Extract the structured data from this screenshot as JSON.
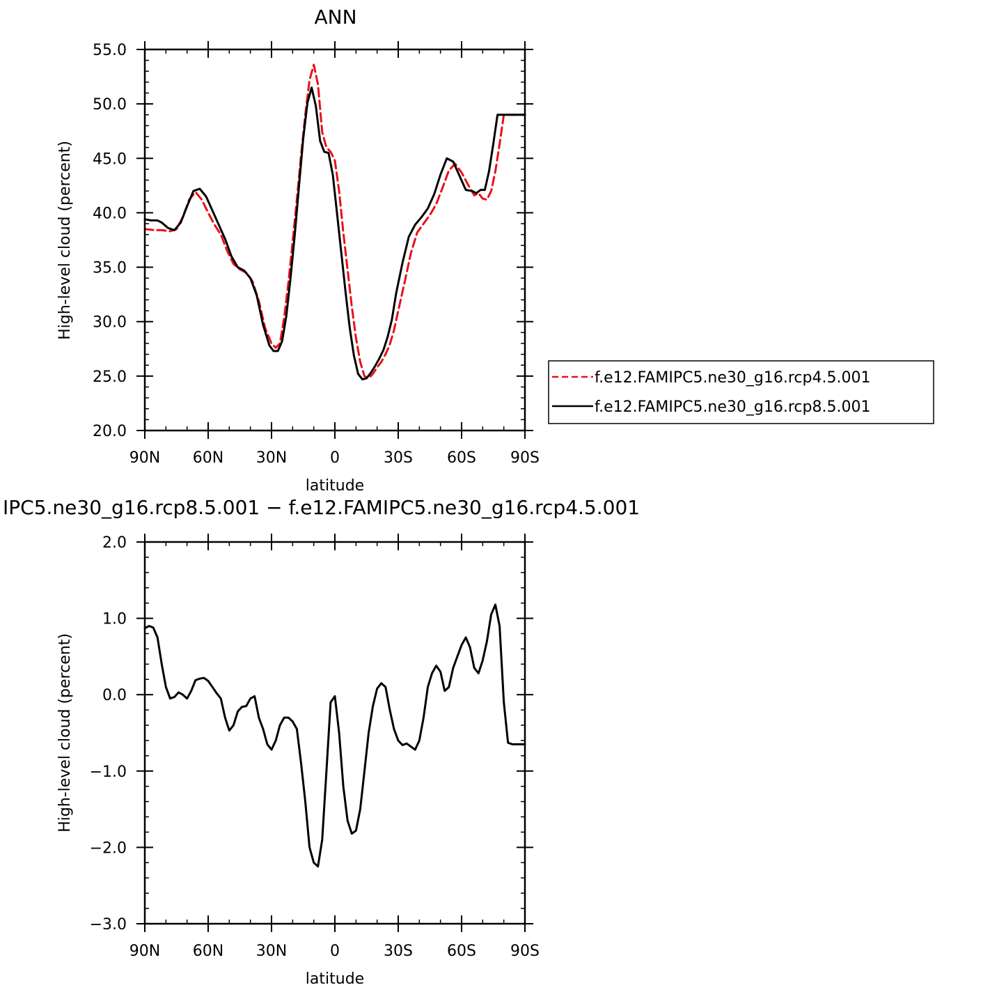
{
  "chart_data": [
    {
      "type": "line",
      "title": "ANN",
      "xlabel": "latitude",
      "ylabel": "High-level cloud (percent)",
      "xlim": [
        -90,
        90
      ],
      "ylim": [
        20,
        55
      ],
      "x_ticks": [
        -90,
        -60,
        -30,
        0,
        30,
        60,
        90
      ],
      "x_tick_labels": [
        "90N",
        "60N",
        "30N",
        "0",
        "30S",
        "60S",
        "90S"
      ],
      "y_ticks": [
        20,
        25,
        30,
        35,
        40,
        45,
        50,
        55
      ],
      "y_tick_labels": [
        "20.0",
        "25.0",
        "30.0",
        "35.0",
        "40.0",
        "45.0",
        "50.0",
        "55.0"
      ],
      "legend_position": "right",
      "series": [
        {
          "name": "f.e12.FAMIPC5.ne30_g16.rcp4.5.001",
          "color": "#e8101a",
          "dash": "dashed",
          "x": [
            -90,
            -85,
            -82,
            -78,
            -75,
            -72,
            -69,
            -66,
            -63,
            -60,
            -57,
            -54,
            -51,
            -48,
            -45,
            -42,
            -39,
            -36,
            -33,
            -30,
            -28,
            -26,
            -24,
            -22,
            -20,
            -18,
            -16,
            -14,
            -12,
            -10,
            -8,
            -6,
            -4,
            -2,
            0,
            2,
            4,
            6,
            8,
            10,
            12,
            14,
            16,
            18,
            20,
            22,
            24,
            26,
            28,
            30,
            33,
            36,
            39,
            42,
            45,
            48,
            51,
            54,
            57,
            60,
            63,
            66,
            68,
            70,
            72,
            74,
            76,
            78,
            80,
            82,
            84,
            86,
            88,
            90
          ],
          "y": [
            38.5,
            38.4,
            38.4,
            38.3,
            38.5,
            39.6,
            41.2,
            41.9,
            41.2,
            40.0,
            38.9,
            38.0,
            36.5,
            35.3,
            34.8,
            34.5,
            33.7,
            31.9,
            29.4,
            28.0,
            27.6,
            28.0,
            30.4,
            33.6,
            37.3,
            41.2,
            45.3,
            49.0,
            52.2,
            53.6,
            51.8,
            47.4,
            46.0,
            45.6,
            44.8,
            42.0,
            38.2,
            34.8,
            31.4,
            28.5,
            26.3,
            25.0,
            24.8,
            25.2,
            25.8,
            26.3,
            27.0,
            27.9,
            29.2,
            31.0,
            33.6,
            36.3,
            38.2,
            39.0,
            39.8,
            40.8,
            42.3,
            43.9,
            44.5,
            43.7,
            42.6,
            41.6,
            41.8,
            41.3,
            41.2,
            42.0,
            43.8,
            46.3,
            49.0,
            49.0,
            49.0,
            49.0,
            49.0,
            49.0
          ]
        },
        {
          "name": "f.e12.FAMIPC5.ne30_g16.rcp8.5.001",
          "color": "#000000",
          "dash": "solid",
          "x": [
            -90,
            -87,
            -84,
            -82,
            -79,
            -76,
            -73,
            -70,
            -67,
            -64,
            -61,
            -58,
            -55,
            -52,
            -49,
            -46,
            -43,
            -40,
            -37,
            -34,
            -31,
            -29,
            -27,
            -25,
            -23,
            -21,
            -19,
            -17,
            -15,
            -13,
            -11,
            -9,
            -7,
            -5,
            -3,
            -1,
            1,
            3,
            5,
            7,
            9,
            11,
            13,
            15,
            17,
            19,
            21,
            23,
            25,
            27,
            29,
            32,
            35,
            38,
            41,
            44,
            47,
            50,
            53,
            56,
            59,
            62,
            65,
            67,
            69,
            71,
            73,
            75,
            77,
            79,
            81,
            83,
            85,
            87,
            90
          ],
          "y": [
            39.4,
            39.3,
            39.3,
            39.1,
            38.6,
            38.4,
            39.1,
            40.6,
            42.0,
            42.2,
            41.5,
            40.2,
            38.9,
            37.6,
            36.0,
            35.0,
            34.7,
            34.0,
            32.4,
            29.7,
            27.8,
            27.3,
            27.3,
            28.2,
            30.5,
            34.0,
            38.0,
            42.4,
            46.8,
            50.1,
            51.5,
            49.8,
            46.6,
            45.6,
            45.5,
            43.5,
            40.0,
            36.4,
            32.8,
            29.5,
            26.9,
            25.2,
            24.7,
            24.8,
            25.3,
            25.9,
            26.6,
            27.4,
            28.6,
            30.2,
            32.6,
            35.4,
            37.8,
            38.9,
            39.6,
            40.4,
            41.7,
            43.5,
            45.0,
            44.7,
            43.4,
            42.1,
            42.0,
            41.8,
            42.1,
            42.1,
            43.8,
            46.3,
            49.0,
            49.0,
            49.0,
            49.0,
            49.0,
            49.0,
            49.0
          ]
        }
      ]
    },
    {
      "type": "line",
      "title": "IPC5.ne30_g16.rcp8.5.001 − f.e12.FAMIPC5.ne30_g16.rcp4.5.001",
      "xlabel": "latitude",
      "ylabel": "High-level cloud (percent)",
      "xlim": [
        -90,
        90
      ],
      "ylim": [
        -3,
        2
      ],
      "x_ticks": [
        -90,
        -60,
        -30,
        0,
        30,
        60,
        90
      ],
      "x_tick_labels": [
        "90N",
        "60N",
        "30N",
        "0",
        "30S",
        "60S",
        "90S"
      ],
      "y_ticks": [
        -3,
        -2,
        -1,
        0,
        1,
        2
      ],
      "y_tick_labels": [
        "−3.0",
        "−2.0",
        "−1.0",
        "0.0",
        "1.0",
        "2.0"
      ],
      "series": [
        {
          "color": "#000000",
          "dash": "solid",
          "x": [
            -90,
            -88,
            -86,
            -84,
            -82,
            -80,
            -78,
            -76,
            -74,
            -72,
            -70,
            -68,
            -66,
            -64,
            -62,
            -60,
            -58,
            -56,
            -54,
            -52,
            -50,
            -48,
            -46,
            -44,
            -42,
            -40,
            -38,
            -36,
            -34,
            -32,
            -30,
            -28,
            -26,
            -24,
            -22,
            -20,
            -18,
            -16,
            -14,
            -12,
            -10,
            -8,
            -6,
            -4,
            -2,
            0,
            2,
            4,
            6,
            8,
            10,
            12,
            14,
            16,
            18,
            20,
            22,
            24,
            26,
            28,
            30,
            32,
            34,
            36,
            38,
            40,
            42,
            44,
            46,
            48,
            50,
            52,
            54,
            56,
            58,
            60,
            62,
            64,
            66,
            68,
            70,
            72,
            74,
            76,
            78,
            80,
            82,
            84,
            86,
            88,
            90
          ],
          "y": [
            0.87,
            0.9,
            0.88,
            0.75,
            0.4,
            0.1,
            -0.05,
            -0.03,
            0.03,
            0.0,
            -0.05,
            0.05,
            0.19,
            0.21,
            0.22,
            0.18,
            0.1,
            0.02,
            -0.05,
            -0.3,
            -0.47,
            -0.4,
            -0.22,
            -0.16,
            -0.15,
            -0.05,
            -0.02,
            -0.3,
            -0.45,
            -0.65,
            -0.72,
            -0.6,
            -0.4,
            -0.3,
            -0.3,
            -0.35,
            -0.45,
            -0.9,
            -1.4,
            -2.0,
            -2.2,
            -2.25,
            -1.9,
            -1.0,
            -0.1,
            -0.02,
            -0.5,
            -1.2,
            -1.65,
            -1.82,
            -1.78,
            -1.5,
            -1.0,
            -0.5,
            -0.15,
            0.08,
            0.15,
            0.1,
            -0.2,
            -0.45,
            -0.6,
            -0.66,
            -0.64,
            -0.68,
            -0.72,
            -0.6,
            -0.3,
            0.1,
            0.28,
            0.38,
            0.3,
            0.05,
            0.1,
            0.35,
            0.5,
            0.65,
            0.75,
            0.62,
            0.35,
            0.28,
            0.45,
            0.7,
            1.05,
            1.18,
            0.9,
            -0.1,
            -0.63,
            -0.65,
            -0.65,
            -0.65,
            -0.65
          ]
        }
      ]
    }
  ]
}
